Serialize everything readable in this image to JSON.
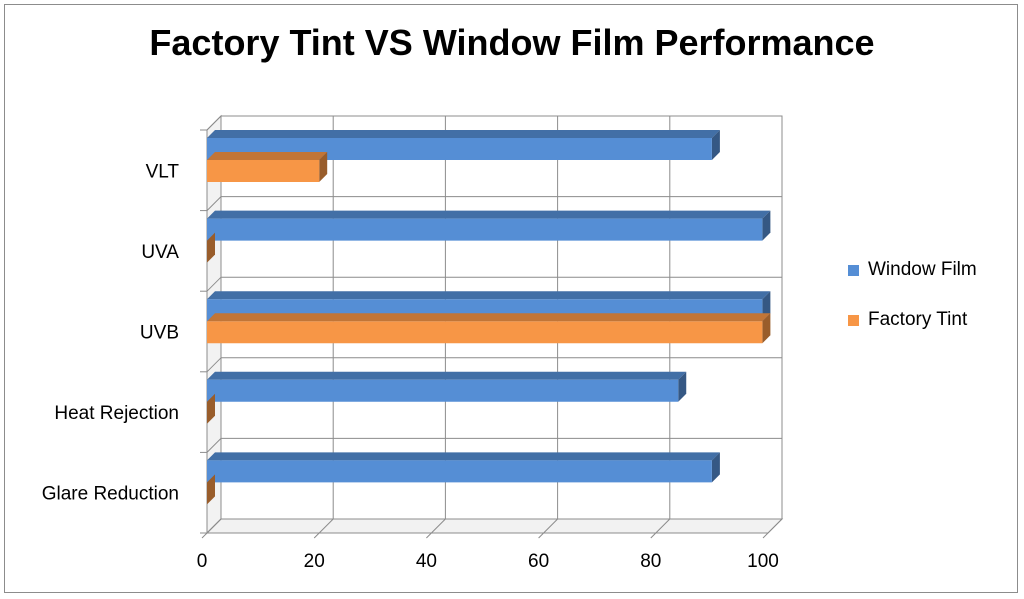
{
  "chart_data": {
    "type": "bar",
    "orientation": "horizontal",
    "three_d": true,
    "title": "Factory Tint VS Window Film Performance",
    "categories": [
      "VLT",
      "UVA",
      "UVB",
      "Heat Rejection",
      "Glare Reduction"
    ],
    "series": [
      {
        "name": "Window Film",
        "color": "#558ED5",
        "values": [
          90,
          99,
          99,
          84,
          90
        ]
      },
      {
        "name": "Factory Tint",
        "color": "#F79646",
        "values": [
          20,
          0,
          99,
          0,
          0
        ]
      }
    ],
    "xlim": [
      0,
      100
    ],
    "xticks": [
      "0",
      "20",
      "40",
      "60",
      "80",
      "100"
    ],
    "grid": true,
    "legend_position": "right"
  }
}
